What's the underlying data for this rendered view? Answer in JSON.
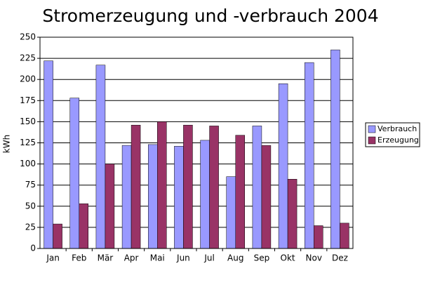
{
  "chart_data": {
    "type": "bar",
    "title": "Stromerzeugung und -verbrauch 2004",
    "y_label": "kWh",
    "categories": [
      "Jan",
      "Feb",
      "Mär",
      "Apr",
      "Mai",
      "Jun",
      "Jul",
      "Aug",
      "Sep",
      "Okt",
      "Nov",
      "Dez"
    ],
    "series": [
      {
        "name": "Verbrauch",
        "color": "#9999ff",
        "values": [
          222,
          178,
          217,
          122,
          123,
          121,
          128,
          85,
          145,
          195,
          220,
          235
        ]
      },
      {
        "name": "Erzeugung",
        "color": "#993366",
        "values": [
          29,
          53,
          100,
          146,
          150,
          146,
          145,
          134,
          122,
          82,
          27,
          30
        ]
      }
    ],
    "ylim": [
      0,
      250
    ],
    "yticks": [
      0,
      25,
      50,
      75,
      100,
      125,
      150,
      175,
      200,
      225,
      250
    ],
    "grid": true,
    "legend": "right"
  }
}
